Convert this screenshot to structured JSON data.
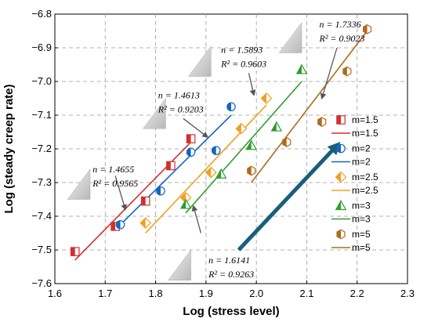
{
  "chart_data": {
    "type": "scatter",
    "xlabel": "Log (stress level)",
    "ylabel": "Log (steady creep rate)",
    "xlim": [
      1.6,
      2.3
    ],
    "ylim": [
      -7.6,
      -6.8
    ],
    "xticks": [
      "1.6",
      "1.7",
      "1.8",
      "1.9",
      "2.0",
      "2.1",
      "2.2",
      "2.3"
    ],
    "yticks": [
      "-6.8",
      "-6.9",
      "-7.0",
      "-7.1",
      "-7.2",
      "-7.3",
      "-7.4",
      "-7.5",
      "-7.6"
    ],
    "grid": true,
    "legend_position": "right",
    "series": [
      {
        "name": "m=1.5",
        "color": "#d32f2f",
        "marker": "half-square",
        "points": [
          [
            1.64,
            -7.505
          ],
          [
            1.72,
            -7.43
          ],
          [
            1.78,
            -7.355
          ],
          [
            1.83,
            -7.25
          ],
          [
            1.87,
            -7.17
          ]
        ],
        "fit": [
          [
            1.64,
            -7.53
          ],
          [
            1.87,
            -7.18
          ]
        ]
      },
      {
        "name": "m=2",
        "color": "#1565c0",
        "marker": "half-circle",
        "points": [
          [
            1.73,
            -7.425
          ],
          [
            1.81,
            -7.325
          ],
          [
            1.87,
            -7.21
          ],
          [
            1.92,
            -7.205
          ],
          [
            1.95,
            -7.075
          ]
        ],
        "fit": [
          [
            1.72,
            -7.44
          ],
          [
            1.95,
            -7.1
          ]
        ]
      },
      {
        "name": "m=2.5",
        "color": "#f0a020",
        "marker": "half-diamond",
        "points": [
          [
            1.78,
            -7.42
          ],
          [
            1.86,
            -7.345
          ],
          [
            1.91,
            -7.27
          ],
          [
            1.97,
            -7.14
          ],
          [
            2.02,
            -7.05
          ]
        ],
        "fit": [
          [
            1.78,
            -7.45
          ],
          [
            2.02,
            -7.07
          ]
        ]
      },
      {
        "name": "m=3",
        "color": "#2e9e2e",
        "marker": "half-triangle",
        "points": [
          [
            1.86,
            -7.365
          ],
          [
            1.93,
            -7.275
          ],
          [
            1.99,
            -7.19
          ],
          [
            2.04,
            -7.135
          ],
          [
            2.09,
            -6.965
          ]
        ],
        "fit": [
          [
            1.86,
            -7.39
          ],
          [
            2.09,
            -7.0
          ]
        ]
      },
      {
        "name": "m=5",
        "color": "#b06a1a",
        "marker": "half-hexagon",
        "points": [
          [
            1.99,
            -7.265
          ],
          [
            2.06,
            -7.18
          ],
          [
            2.13,
            -7.12
          ],
          [
            2.18,
            -6.97
          ],
          [
            2.22,
            -6.845
          ]
        ],
        "fit": [
          [
            1.99,
            -7.3
          ],
          [
            2.22,
            -6.85
          ]
        ]
      }
    ],
    "annotations": [
      {
        "n": "n = 1.4655",
        "r2": "R² = 0.9565",
        "text_at": [
          1.675,
          -7.27
        ],
        "arrow_from": [
          1.72,
          -7.28
        ],
        "arrow_to": [
          1.74,
          -7.38
        ]
      },
      {
        "n": "n = 1.4613",
        "r2": "R² = 0.9203",
        "text_at": [
          1.805,
          -7.05
        ],
        "arrow_from": [
          1.855,
          -7.11
        ],
        "arrow_to": [
          1.903,
          -7.165
        ]
      },
      {
        "n": "n = 1.5893",
        "r2": "R² = 0.9603",
        "text_at": [
          1.93,
          -6.915
        ],
        "arrow_from": [
          1.985,
          -6.975
        ],
        "arrow_to": [
          1.995,
          -7.04
        ]
      },
      {
        "n": "n = 1.7336",
        "r2": "R² = 0.9023",
        "text_at": [
          2.125,
          -6.84
        ],
        "arrow_from": [
          2.16,
          -6.9
        ],
        "arrow_to": [
          2.13,
          -7.05
        ]
      },
      {
        "n": "n = 1.6141",
        "r2": "R² = 0.9263",
        "text_at": [
          1.905,
          -7.54
        ],
        "arrow_from": [
          1.89,
          -7.45
        ],
        "arrow_to": [
          1.875,
          -7.37
        ]
      }
    ],
    "triangles": [
      {
        "corner": [
          1.625,
          -7.35
        ],
        "dx": 0.045,
        "dy": 0.09
      },
      {
        "corner": [
          1.775,
          -7.14
        ],
        "dx": 0.045,
        "dy": 0.09
      },
      {
        "corner": [
          1.865,
          -6.985
        ],
        "dx": 0.045,
        "dy": 0.09
      },
      {
        "corner": [
          2.045,
          -6.915
        ],
        "dx": 0.045,
        "dy": 0.09
      },
      {
        "corner": [
          1.825,
          -7.59
        ],
        "dx": 0.045,
        "dy": 0.09
      }
    ],
    "big_arrow": {
      "from": [
        1.965,
        -7.5
      ],
      "to": [
        2.16,
        -7.19
      ],
      "color": "#1a5f7a"
    }
  }
}
